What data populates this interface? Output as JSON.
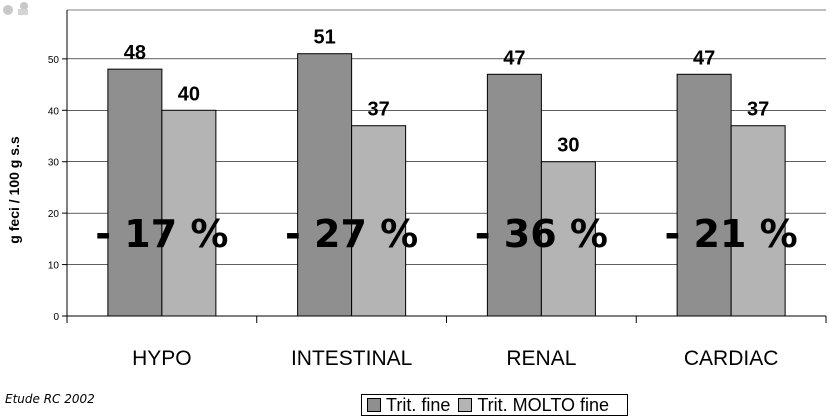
{
  "source_note": "Etude RC 2002",
  "colors": {
    "series_fine": "#8f8f8f",
    "series_molto": "#b4b4b4",
    "bar_stroke": "#000000",
    "grid": "#000000",
    "logo": "#c8c8c8"
  },
  "legend": [
    "Trit. fine",
    "Trit. MOLTO fine"
  ],
  "chart_data": {
    "type": "bar",
    "categories": [
      "HYPO",
      "INTESTINAL",
      "RENAL",
      "CARDIAC"
    ],
    "series": [
      {
        "name": "Trit. fine",
        "values": [
          48,
          51,
          47,
          47
        ],
        "labels": [
          "48",
          "51",
          "47",
          "47"
        ]
      },
      {
        "name": "Trit. MOLTO fine",
        "values": [
          40,
          37,
          30,
          37
        ],
        "labels": [
          "40",
          "37",
          "30",
          "37"
        ]
      }
    ],
    "yticks": [
      0,
      10,
      20,
      30,
      40,
      50
    ],
    "ylim": [
      0,
      59.5
    ],
    "ylabel": "g feci / 100 g s.s",
    "xlabel": "",
    "title": "",
    "annotations": [
      "- 17 %",
      "- 27 %",
      "- 36 %",
      "- 21 %"
    ],
    "annotation_value": 17,
    "grid": true,
    "legend_position": "bottom"
  }
}
